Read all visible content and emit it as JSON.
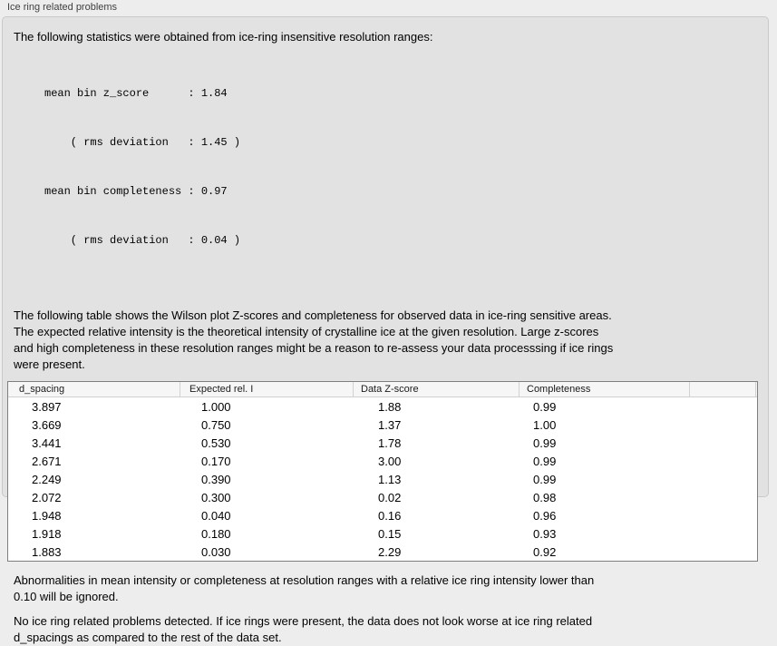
{
  "colors": {
    "window_bg": "#ededed",
    "groupbox_bg": "#e2e2e2",
    "groupbox_border": "#c9c9c9",
    "table_border": "#7f7f7f",
    "table_header_bg": "#f6f6f6",
    "header_separator": "#d2d2d2",
    "label_text": "#3f3f3f",
    "body_text": "#000000"
  },
  "panel": {
    "title": "Ice ring related problems"
  },
  "intro": {
    "text": "The following statistics were obtained from ice-ring insensitive resolution ranges:"
  },
  "stats": {
    "lines": [
      "mean bin z_score      : 1.84",
      "    ( rms deviation   : 1.45 )",
      "mean bin completeness : 0.97",
      "    ( rms deviation   : 0.04 )"
    ]
  },
  "description": {
    "lines": [
      "The following table shows the Wilson plot Z-scores and completeness for observed data in ice-ring sensitive areas.",
      "The expected relative intensity is the theoretical intensity of crystalline ice at the given resolution. Large z-scores",
      "and high completeness in these resolution ranges might be a reason to re-assess your data processsing if ice rings",
      "were present."
    ]
  },
  "table": {
    "columns": [
      "d_spacing",
      "Expected rel. I",
      "Data Z-score",
      "Completeness"
    ],
    "rows": [
      [
        "3.897",
        "1.000",
        "1.88",
        "0.99"
      ],
      [
        "3.669",
        "0.750",
        "1.37",
        "1.00"
      ],
      [
        "3.441",
        "0.530",
        "1.78",
        "0.99"
      ],
      [
        "2.671",
        "0.170",
        "3.00",
        "0.99"
      ],
      [
        "2.249",
        "0.390",
        "1.13",
        "0.99"
      ],
      [
        "2.072",
        "0.300",
        "0.02",
        "0.98"
      ],
      [
        "1.948",
        "0.040",
        "0.16",
        "0.96"
      ],
      [
        "1.918",
        "0.180",
        "0.15",
        "0.93"
      ],
      [
        "1.883",
        "0.030",
        "2.29",
        "0.92"
      ]
    ]
  },
  "note": {
    "lines": [
      "Abnormalities in mean intensity or completeness at resolution ranges with a relative ice ring intensity lower than",
      "0.10 will be ignored."
    ]
  },
  "conclusion": {
    "lines": [
      "No ice ring related problems detected. If ice rings were present, the data does not look worse at ice ring related",
      "d_spacings as compared to the rest of the data set."
    ]
  }
}
